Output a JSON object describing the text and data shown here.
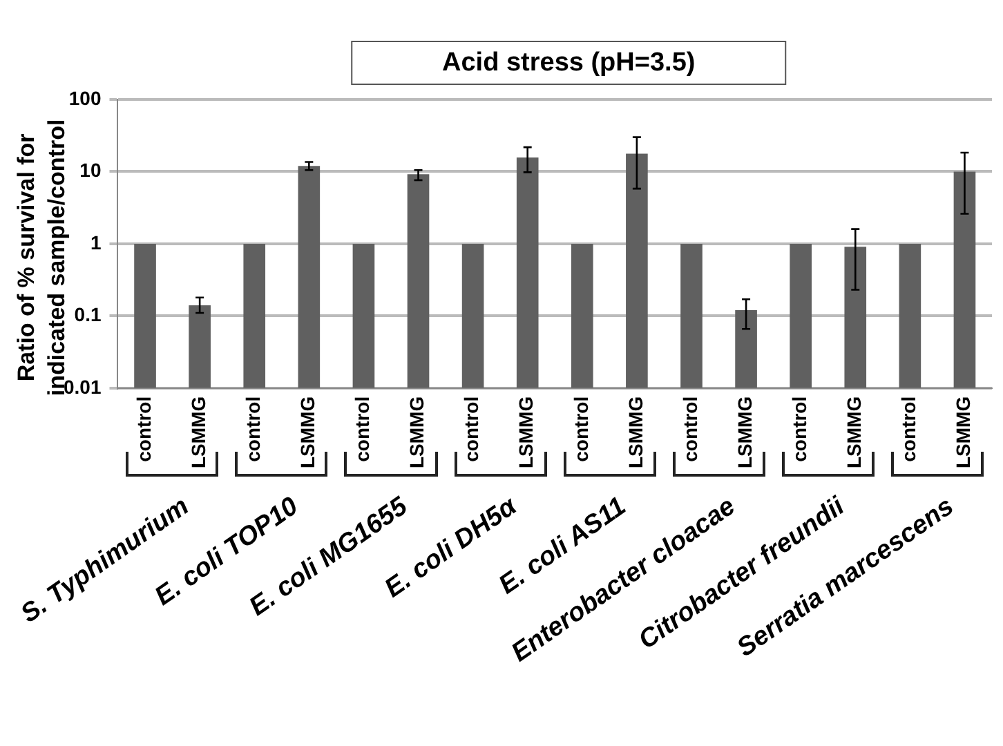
{
  "chart_data": {
    "type": "bar",
    "title": "Acid stress (pH=3.5)",
    "ylabel": "Ratio of % survival for indicated sample/control",
    "categories": [
      "control",
      "LSMMG",
      "control",
      "LSMMG",
      "control",
      "LSMMG",
      "control",
      "LSMMG",
      "control",
      "LSMMG",
      "control",
      "LSMMG",
      "control",
      "LSMMG",
      "control",
      "LSMMG"
    ],
    "values": [
      1,
      0.14,
      1,
      12,
      1,
      9.2,
      1,
      15.7,
      1,
      17.7,
      1,
      0.12,
      1,
      0.91,
      1,
      10
    ],
    "errors": [
      null,
      [
        0.11,
        0.18
      ],
      null,
      [
        10.5,
        13.6
      ],
      null,
      [
        7.6,
        10.5
      ],
      null,
      [
        9.8,
        21.8
      ],
      null,
      [
        5.8,
        30
      ],
      null,
      [
        0.066,
        0.17
      ],
      null,
      [
        0.23,
        1.6
      ],
      null,
      [
        2.6,
        18.3
      ]
    ],
    "color": "#606060",
    "annotations": [
      "S. Typhimurium",
      "E. coli TOP10",
      "E. coli MG1655",
      "E. coli DH5α",
      "E. coli AS11",
      "Enterobacter cloacae",
      "Citrobacter freundii",
      "Serratia marcescens"
    ],
    "log": "y",
    "ylim": [
      0.01,
      100
    ],
    "yticks": [
      0.01,
      0.1,
      1,
      10,
      100
    ],
    "grid": "y",
    "legend": false
  }
}
